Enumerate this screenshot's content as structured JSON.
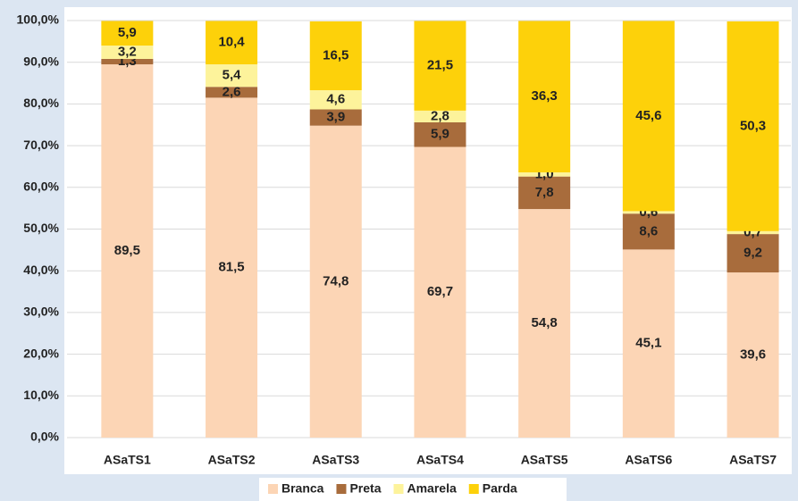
{
  "chart_data": {
    "type": "stacked_bar",
    "categories": [
      "ASaTS1",
      "ASaTS2",
      "ASaTS3",
      "ASaTS4",
      "ASaTS5",
      "ASaTS6",
      "ASaTS7"
    ],
    "series": [
      {
        "name": "Branca",
        "color": "#fcd5b5",
        "values": [
          89.5,
          81.5,
          74.8,
          69.7,
          54.8,
          45.1,
          39.6
        ],
        "value_labels": [
          "89,5",
          "81,5",
          "74,8",
          "69,7",
          "54,8",
          "45,1",
          "39,6"
        ]
      },
      {
        "name": "Preta",
        "color": "#a86c3c",
        "values": [
          1.3,
          2.6,
          3.9,
          5.9,
          7.8,
          8.6,
          9.2
        ],
        "value_labels": [
          "1,3",
          "2,6",
          "3,9",
          "5,9",
          "7,8",
          "8,6",
          "9,2"
        ]
      },
      {
        "name": "Amarela",
        "color": "#fdf39b",
        "values": [
          3.2,
          5.4,
          4.6,
          2.8,
          1.0,
          0.6,
          0.7
        ],
        "value_labels": [
          "3,2",
          "5,4",
          "4,6",
          "2,8",
          "1,0",
          "0,6",
          "0,7"
        ]
      },
      {
        "name": "Parda",
        "color": "#fdd10a",
        "values": [
          5.9,
          10.4,
          16.5,
          21.5,
          36.3,
          45.6,
          50.3
        ],
        "value_labels": [
          "5,9",
          "10,4",
          "16,5",
          "21,5",
          "36,3",
          "45,6",
          "50,3"
        ]
      }
    ],
    "ylim": [
      0,
      100
    ],
    "yticks": [
      {
        "value": 0,
        "label": "0,0%"
      },
      {
        "value": 10,
        "label": "10,0%"
      },
      {
        "value": 20,
        "label": "20,0%"
      },
      {
        "value": 30,
        "label": "30,0%"
      },
      {
        "value": 40,
        "label": "40,0%"
      },
      {
        "value": 50,
        "label": "50,0%"
      },
      {
        "value": 60,
        "label": "60,0%"
      },
      {
        "value": 70,
        "label": "70,0%"
      },
      {
        "value": 80,
        "label": "80,0%"
      },
      {
        "value": 90,
        "label": "90,0%"
      },
      {
        "value": 100,
        "label": "100,0%"
      }
    ],
    "grid": true,
    "legend": "bottom"
  }
}
